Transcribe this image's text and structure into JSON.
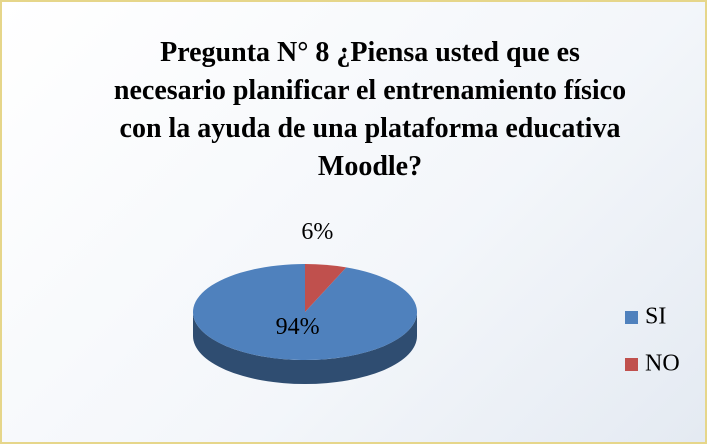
{
  "chart_data": {
    "type": "pie",
    "title": "Pregunta N° 8 ¿Piensa usted que es necesario planificar el entrenamiento físico con la ayuda de una plataforma educativa Moodle?",
    "categories": [
      "SI",
      "NO"
    ],
    "values": [
      94,
      6
    ],
    "value_labels": [
      "94%",
      "6%"
    ],
    "colors": [
      "#4f81bd",
      "#c0504d"
    ],
    "legend": "right"
  }
}
